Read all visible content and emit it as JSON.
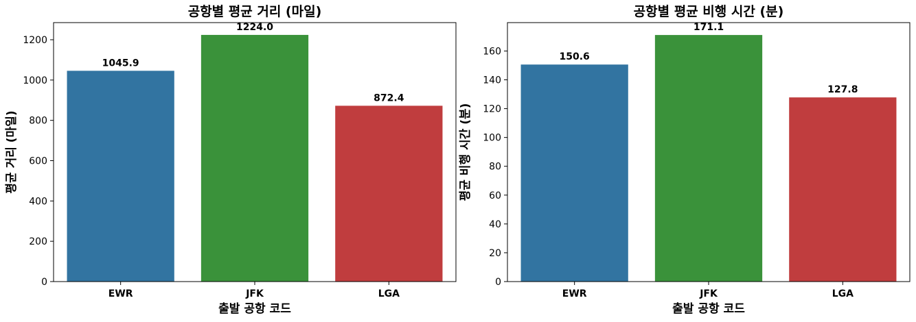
{
  "chart_data": [
    {
      "type": "bar",
      "title": "공항별 평균 거리 (마일)",
      "xlabel": "출발 공항 코드",
      "ylabel": "평균 거리 (마일)",
      "categories": [
        "EWR",
        "JFK",
        "LGA"
      ],
      "values": [
        1045.9,
        1224.0,
        872.4
      ],
      "data_labels": [
        "1045.9",
        "1224.0",
        "872.4"
      ],
      "colors": [
        "#3274a1",
        "#3a923a",
        "#c03d3e"
      ],
      "ylim": [
        0,
        1285
      ],
      "yticks": [
        0,
        200,
        400,
        600,
        800,
        1000,
        1200
      ],
      "grid": false,
      "legend": "none"
    },
    {
      "type": "bar",
      "title": "공항별 평균 비행 시간 (분)",
      "xlabel": "출발 공항 코드",
      "ylabel": "평균 비행 시간 (분)",
      "categories": [
        "EWR",
        "JFK",
        "LGA"
      ],
      "values": [
        150.6,
        171.1,
        127.8
      ],
      "data_labels": [
        "150.6",
        "171.1",
        "127.8"
      ],
      "colors": [
        "#3274a1",
        "#3a923a",
        "#c03d3e"
      ],
      "ylim": [
        0,
        179.7
      ],
      "yticks": [
        0,
        20,
        40,
        60,
        80,
        100,
        120,
        140,
        160
      ],
      "grid": false,
      "legend": "none"
    }
  ]
}
